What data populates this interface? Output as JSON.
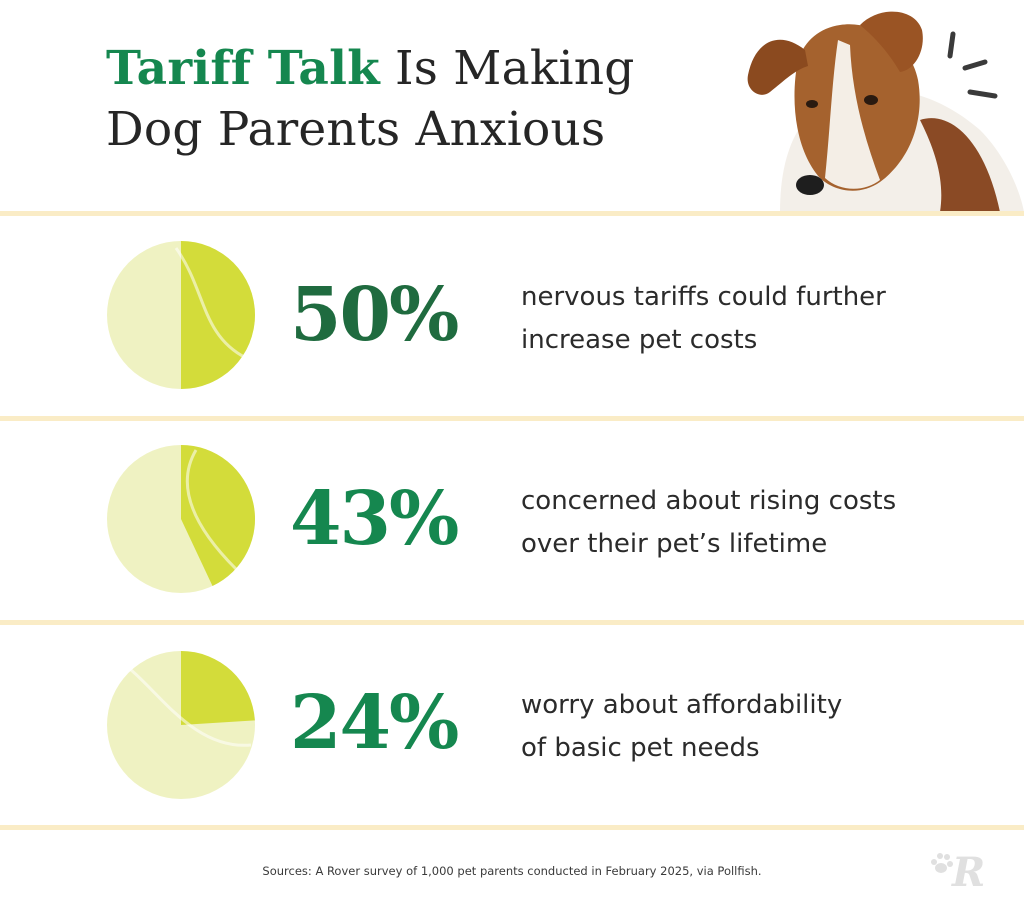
{
  "title": {
    "accent": "Tariff Talk",
    "rest_line1": " Is Making",
    "line2": "Dog Parents Anxious"
  },
  "stats": [
    {
      "value": "50%",
      "line1": "nervous tariffs could further",
      "line2": "increase pet costs"
    },
    {
      "value": "43%",
      "line1": "concerned about rising costs",
      "line2": "over their pet’s lifetime"
    },
    {
      "value": "24%",
      "line1": "worry about affordability",
      "line2": "of basic pet needs"
    }
  ],
  "source": "Sources: A Rover survey of 1,000 pet parents conducted in February 2025, via Pollfish.",
  "colors": {
    "title_green": "#15874f",
    "stat_dark_green": "#1f6b3f",
    "stat_green": "#15874f",
    "divider": "#faecc6",
    "ball_light": "#eff2c2",
    "ball_fill": "#d3dc3a"
  },
  "icons": {
    "dog_image": "dog-photo",
    "logo": "rover-logo-icon"
  },
  "chart_data": {
    "type": "pie",
    "categories": [
      "nervous tariffs could further increase pet costs",
      "concerned about rising costs over their pet’s lifetime",
      "worry about affordability of basic pet needs"
    ],
    "values": [
      50,
      43,
      24
    ],
    "unit": "%",
    "title": "Tariff Talk Is Making Dog Parents Anxious"
  }
}
